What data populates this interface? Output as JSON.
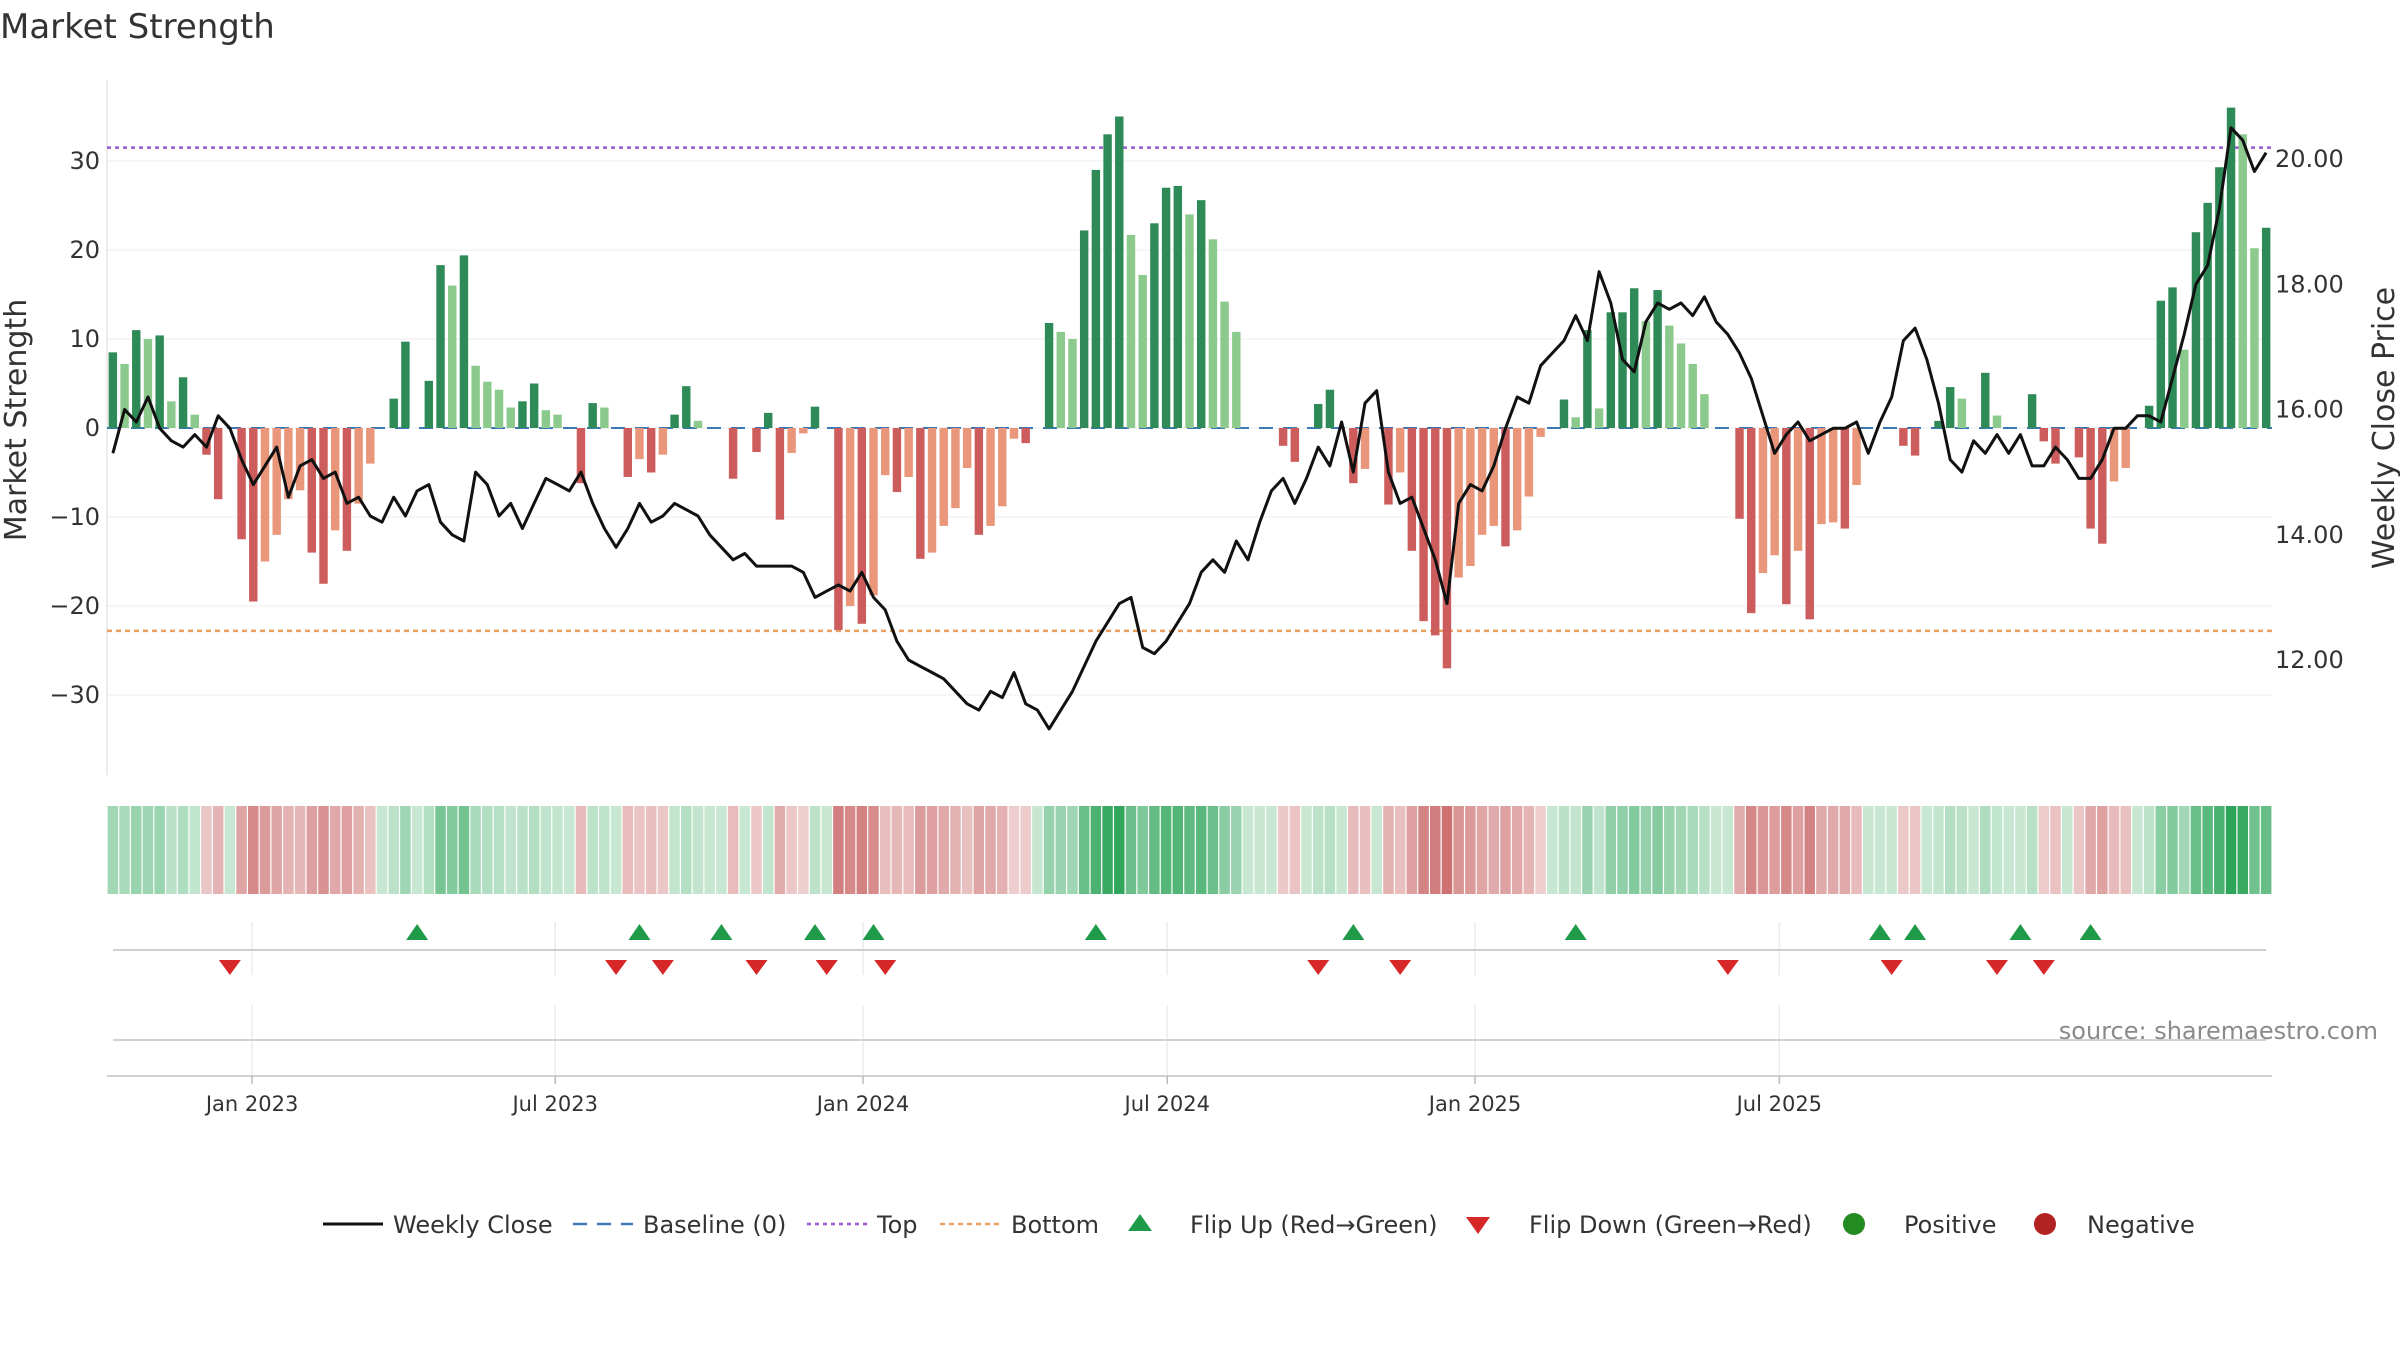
{
  "chart_data": {
    "type": "bar",
    "title": "Market Strength",
    "source": "source: sharemaestro.com",
    "left_axis": {
      "label": "Market Strength",
      "ticks": [
        30,
        20,
        10,
        0,
        -10,
        -20,
        -30
      ],
      "tick_labels": [
        "30",
        "20",
        "10",
        "0",
        "−10",
        "−20",
        "−30"
      ],
      "range": [
        -39,
        39
      ]
    },
    "right_axis": {
      "label": "Weekly Close Price",
      "ticks": [
        20,
        18,
        16,
        14,
        12
      ],
      "tick_labels": [
        "20.00",
        "18.00",
        "16.00",
        "14.00",
        "12.00"
      ]
    },
    "x_axis": {
      "start_date": "2022-10-07",
      "weeks": 182,
      "tick_labels": [
        "Jan 2023",
        "Jul 2023",
        "Jan 2024",
        "Jul 2024",
        "Jan 2025",
        "Jul 2025"
      ],
      "tick_weeks": [
        12.4,
        38.3,
        64.6,
        90.6,
        116.9,
        142.9
      ]
    },
    "reference_lines": {
      "top": 31.5,
      "bottom": -22.8,
      "baseline": 0
    },
    "strength": [
      8.5,
      7.2,
      11,
      10,
      10.4,
      3,
      5.7,
      1.5,
      -3,
      -8,
      0,
      -12.5,
      -19.5,
      -15,
      -12,
      -8,
      -7,
      -14,
      -17.5,
      -11.5,
      -13.8,
      -8.5,
      -4,
      0,
      3.3,
      9.7,
      0,
      5.3,
      18.3,
      16,
      19.4,
      7,
      5.2,
      4.3,
      2.3,
      3,
      5,
      2,
      1.5,
      0,
      -6.2,
      2.8,
      2.3,
      0,
      -5.5,
      -3.5,
      -5,
      -3,
      1.5,
      4.7,
      0.8,
      0,
      0,
      -5.7,
      0,
      -2.7,
      1.7,
      -10.3,
      -2.8,
      -0.6,
      2.4,
      0,
      -22.7,
      -20,
      -22,
      -18.8,
      -5.3,
      -7.2,
      -5.5,
      -14.7,
      -14,
      -11,
      -9,
      -4.5,
      -12,
      -11,
      -8.8,
      -1.2,
      -1.7,
      0,
      11.8,
      10.8,
      10,
      22.2,
      29,
      33,
      35,
      21.7,
      17.2,
      23,
      27,
      27.2,
      24,
      25.6,
      21.2,
      14.2,
      10.8,
      0,
      0,
      0,
      -2,
      -3.8,
      0,
      2.7,
      4.3,
      0,
      -6.2,
      -4.6,
      0,
      -8.6,
      -5,
      -13.8,
      -21.7,
      -23.3,
      -27,
      -16.8,
      -15.5,
      -12,
      -11,
      -13.3,
      -11.5,
      -7.7,
      -1,
      0,
      3.2,
      1.2,
      11,
      2.2,
      13,
      13,
      15.7,
      12,
      15.5,
      11.5,
      9.5,
      7.2,
      3.8,
      0,
      0,
      -10.2,
      -20.8,
      -16.3,
      -14.3,
      -19.8,
      -13.8,
      -21.5,
      -10.8,
      -10.6,
      -11.3,
      -6.4,
      0,
      0,
      0,
      -2,
      -3.1,
      0,
      0.8,
      4.6,
      3.3,
      0,
      6.2,
      1.4,
      0,
      0,
      3.8,
      -1.5,
      -4,
      0,
      -3.3,
      -11.3,
      -13,
      -6,
      -4.5,
      0,
      2.5,
      14.3,
      15.8,
      8.8,
      22,
      25.3,
      29.3,
      36,
      33,
      20.2,
      22.5
    ],
    "weekly_close": [
      15.3,
      16,
      15.8,
      16.2,
      15.7,
      15.5,
      15.4,
      15.6,
      15.4,
      15.9,
      15.7,
      15.2,
      14.8,
      15.1,
      15.4,
      14.6,
      15.1,
      15.2,
      14.9,
      15,
      14.5,
      14.6,
      14.3,
      14.2,
      14.6,
      14.3,
      14.7,
      14.8,
      14.2,
      14,
      13.9,
      15,
      14.8,
      14.3,
      14.5,
      14.1,
      14.5,
      14.9,
      14.8,
      14.7,
      15,
      14.5,
      14.1,
      13.8,
      14.1,
      14.5,
      14.2,
      14.3,
      14.5,
      14.4,
      14.3,
      14,
      13.8,
      13.6,
      13.7,
      13.5,
      13.5,
      13.5,
      13.5,
      13.4,
      13,
      13.1,
      13.2,
      13.1,
      13.4,
      13,
      12.8,
      12.3,
      12,
      11.9,
      11.8,
      11.7,
      11.5,
      11.3,
      11.2,
      11.5,
      11.4,
      11.8,
      11.3,
      11.2,
      10.9,
      11.2,
      11.5,
      11.9,
      12.3,
      12.6,
      12.9,
      13,
      12.2,
      12.1,
      12.3,
      12.6,
      12.9,
      13.4,
      13.6,
      13.4,
      13.9,
      13.6,
      14.2,
      14.7,
      14.9,
      14.5,
      14.9,
      15.4,
      15.1,
      15.8,
      15,
      16.1,
      16.3,
      15,
      14.5,
      14.6,
      14.1,
      13.6,
      12.9,
      14.5,
      14.8,
      14.7,
      15.1,
      15.7,
      16.2,
      16.1,
      16.7,
      16.9,
      17.1,
      17.5,
      17.1,
      18.2,
      17.7,
      16.8,
      16.6,
      17.4,
      17.7,
      17.6,
      17.7,
      17.5,
      17.8,
      17.4,
      17.2,
      16.9,
      16.5,
      15.9,
      15.3,
      15.6,
      15.8,
      15.5,
      15.6,
      15.7,
      15.7,
      15.8,
      15.3,
      15.8,
      16.2,
      17.1,
      17.3,
      16.8,
      16.1,
      15.2,
      15.0,
      15.5,
      15.3,
      15.6,
      15.3,
      15.6,
      15.1,
      15.1,
      15.4,
      15.2,
      14.9,
      14.9,
      15.2,
      15.7,
      15.7,
      15.9,
      15.9,
      15.8,
      16.5,
      17.2,
      18,
      18.3,
      19.2,
      20.5,
      20.3,
      19.8,
      20.1
    ],
    "flip_up_weeks": [
      26,
      45,
      52,
      60,
      65,
      84,
      106,
      125,
      151,
      154,
      163,
      169
    ],
    "flip_down_weeks": [
      10,
      43,
      47,
      55,
      61,
      66,
      103,
      110,
      138,
      152,
      161,
      165
    ],
    "legend": [
      {
        "key": "weekly-close",
        "label": "Weekly Close"
      },
      {
        "key": "baseline",
        "label": "Baseline (0)"
      },
      {
        "key": "top",
        "label": "Top"
      },
      {
        "key": "bottom",
        "label": "Bottom"
      },
      {
        "key": "flip-up",
        "label": "Flip Up (Red→Green)"
      },
      {
        "key": "flip-down",
        "label": "Flip Down (Green→Red)"
      },
      {
        "key": "positive",
        "label": "Positive"
      },
      {
        "key": "negative",
        "label": "Negative"
      }
    ],
    "colors": {
      "strong_positive": "#2e8b57",
      "weak_positive": "#8cc98c",
      "strong_negative": "#cd5c5c",
      "weak_negative": "#e9967a",
      "line": "#111111",
      "baseline": "#3b78b5",
      "top": "#9b59d0",
      "bottom": "#e8a060",
      "flip_up": "#1e9a48",
      "flip_down": "#d62828",
      "positive_dot": "#228b22",
      "negative_dot": "#b22222"
    },
    "grid": true,
    "legend_position": "bottom"
  }
}
